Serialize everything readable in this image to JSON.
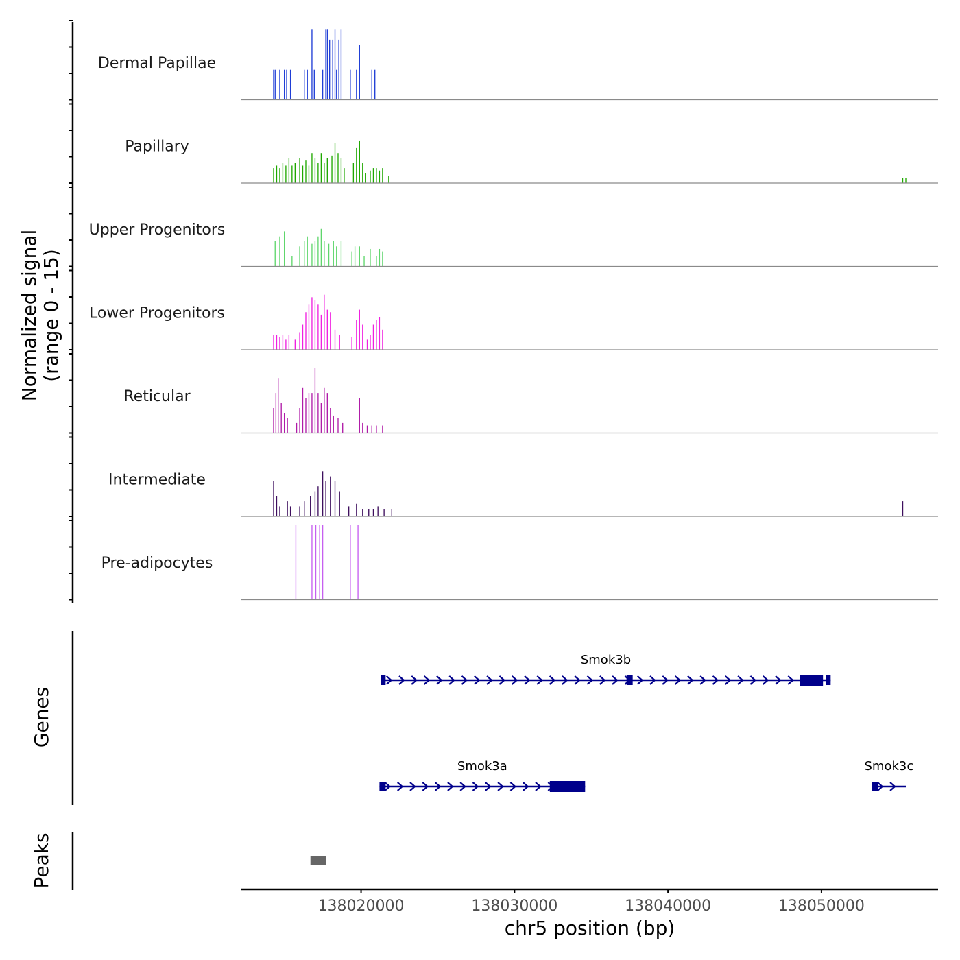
{
  "chart_data": {
    "type": "genome-coverage",
    "chromosome": "chr5",
    "xlabel": "chr5 position (bp)",
    "xlim": [
      138012200,
      138057600
    ],
    "x_ticks": [
      138020000,
      138030000,
      138040000,
      138050000
    ],
    "x_tick_labels": [
      "138020000",
      "138030000",
      "138040000",
      "138050000"
    ],
    "signal_ylabel": "Normalized signal",
    "signal_range_label": "(range 0 - 15)",
    "ylim": [
      0,
      15
    ],
    "tracks": [
      {
        "name": "Dermal Papillae",
        "color": "#1F3ED6",
        "bins": [
          [
            138014300,
            6
          ],
          [
            138014400,
            6
          ],
          [
            138014700,
            6
          ],
          [
            138015000,
            6
          ],
          [
            138015150,
            6
          ],
          [
            138015400,
            6
          ],
          [
            138016300,
            6
          ],
          [
            138016500,
            6
          ],
          [
            138016800,
            14
          ],
          [
            138016950,
            6
          ],
          [
            138017500,
            6
          ],
          [
            138017700,
            14
          ],
          [
            138017800,
            14
          ],
          [
            138017950,
            12
          ],
          [
            138018150,
            12
          ],
          [
            138018300,
            14
          ],
          [
            138018400,
            6
          ],
          [
            138018550,
            12
          ],
          [
            138018700,
            14
          ],
          [
            138019300,
            6
          ],
          [
            138019700,
            6
          ],
          [
            138019900,
            11
          ],
          [
            138020700,
            6
          ],
          [
            138020900,
            6
          ]
        ]
      },
      {
        "name": "Papillary",
        "color": "#1FA800",
        "bins": [
          [
            138014300,
            3
          ],
          [
            138014500,
            3.5
          ],
          [
            138014700,
            3
          ],
          [
            138014900,
            4
          ],
          [
            138015100,
            3.5
          ],
          [
            138015300,
            5
          ],
          [
            138015500,
            3.5
          ],
          [
            138015700,
            4
          ],
          [
            138016000,
            5
          ],
          [
            138016200,
            3.5
          ],
          [
            138016400,
            4.5
          ],
          [
            138016600,
            3.5
          ],
          [
            138016800,
            6
          ],
          [
            138017000,
            5
          ],
          [
            138017200,
            4
          ],
          [
            138017400,
            6
          ],
          [
            138017600,
            4
          ],
          [
            138017800,
            5
          ],
          [
            138018100,
            5.5
          ],
          [
            138018300,
            8
          ],
          [
            138018500,
            6
          ],
          [
            138018700,
            5
          ],
          [
            138018900,
            3
          ],
          [
            138019500,
            4
          ],
          [
            138019700,
            7
          ],
          [
            138019900,
            8.5
          ],
          [
            138020100,
            4
          ],
          [
            138020300,
            2
          ],
          [
            138020600,
            2.5
          ],
          [
            138020800,
            3
          ],
          [
            138021000,
            3
          ],
          [
            138021200,
            2.5
          ],
          [
            138021400,
            3
          ],
          [
            138021800,
            1.5
          ],
          [
            138055300,
            1
          ],
          [
            138055500,
            1
          ]
        ]
      },
      {
        "name": "Upper Progenitors",
        "color": "#5FD66C",
        "bins": [
          [
            138014400,
            5
          ],
          [
            138014700,
            6
          ],
          [
            138015000,
            7
          ],
          [
            138015500,
            2
          ],
          [
            138016000,
            4
          ],
          [
            138016300,
            5
          ],
          [
            138016500,
            6
          ],
          [
            138016800,
            4.5
          ],
          [
            138017000,
            5
          ],
          [
            138017200,
            6
          ],
          [
            138017400,
            7.5
          ],
          [
            138017600,
            5
          ],
          [
            138017900,
            4.5
          ],
          [
            138018200,
            5
          ],
          [
            138018400,
            4
          ],
          [
            138018700,
            5
          ],
          [
            138019400,
            3
          ],
          [
            138019600,
            4
          ],
          [
            138019900,
            4
          ],
          [
            138020200,
            2
          ],
          [
            138020600,
            3.5
          ],
          [
            138021000,
            2
          ],
          [
            138021200,
            3.5
          ],
          [
            138021400,
            3
          ]
        ]
      },
      {
        "name": "Lower Progenitors",
        "color": "#F020E0",
        "bins": [
          [
            138014300,
            3
          ],
          [
            138014500,
            3
          ],
          [
            138014700,
            2.5
          ],
          [
            138014900,
            3
          ],
          [
            138015100,
            2
          ],
          [
            138015300,
            3
          ],
          [
            138015700,
            2
          ],
          [
            138016000,
            3.5
          ],
          [
            138016200,
            5
          ],
          [
            138016400,
            7.5
          ],
          [
            138016600,
            9
          ],
          [
            138016800,
            10.5
          ],
          [
            138017000,
            10
          ],
          [
            138017200,
            9
          ],
          [
            138017400,
            7
          ],
          [
            138017600,
            11
          ],
          [
            138017800,
            8
          ],
          [
            138018000,
            7.5
          ],
          [
            138018300,
            4
          ],
          [
            138018600,
            3
          ],
          [
            138019400,
            2.5
          ],
          [
            138019700,
            6
          ],
          [
            138019900,
            8
          ],
          [
            138020100,
            5
          ],
          [
            138020400,
            2
          ],
          [
            138020600,
            3
          ],
          [
            138020800,
            5
          ],
          [
            138021000,
            6
          ],
          [
            138021200,
            6.5
          ],
          [
            138021400,
            4
          ]
        ]
      },
      {
        "name": "Reticular",
        "color": "#B01BA8",
        "bins": [
          [
            138014300,
            5
          ],
          [
            138014450,
            8
          ],
          [
            138014600,
            11
          ],
          [
            138014800,
            6
          ],
          [
            138015000,
            4
          ],
          [
            138015200,
            3
          ],
          [
            138015800,
            2
          ],
          [
            138016000,
            5
          ],
          [
            138016200,
            9
          ],
          [
            138016400,
            7
          ],
          [
            138016600,
            8
          ],
          [
            138016800,
            8
          ],
          [
            138017000,
            13
          ],
          [
            138017200,
            8
          ],
          [
            138017400,
            6
          ],
          [
            138017600,
            9
          ],
          [
            138017800,
            8
          ],
          [
            138018000,
            5
          ],
          [
            138018200,
            3.5
          ],
          [
            138018500,
            3
          ],
          [
            138018800,
            2
          ],
          [
            138019900,
            7
          ],
          [
            138020100,
            2
          ],
          [
            138020400,
            1.5
          ],
          [
            138020700,
            1.5
          ],
          [
            138021000,
            1.5
          ],
          [
            138021400,
            1.5
          ]
        ]
      },
      {
        "name": "Intermediate",
        "color": "#3E0F5E",
        "bins": [
          [
            138014300,
            7
          ],
          [
            138014500,
            4
          ],
          [
            138014700,
            2
          ],
          [
            138015200,
            3
          ],
          [
            138015400,
            2
          ],
          [
            138016000,
            2
          ],
          [
            138016300,
            3
          ],
          [
            138016700,
            4
          ],
          [
            138017000,
            5
          ],
          [
            138017200,
            6
          ],
          [
            138017500,
            9
          ],
          [
            138017700,
            7
          ],
          [
            138018000,
            8
          ],
          [
            138018300,
            7
          ],
          [
            138018600,
            5
          ],
          [
            138019200,
            2
          ],
          [
            138019700,
            2.5
          ],
          [
            138020100,
            1.5
          ],
          [
            138020500,
            1.5
          ],
          [
            138020800,
            1.5
          ],
          [
            138021100,
            2
          ],
          [
            138021500,
            1.5
          ],
          [
            138022000,
            1.5
          ],
          [
            138055300,
            3
          ]
        ]
      },
      {
        "name": "Pre-adipocytes",
        "color": "#C65FF0",
        "bins": [
          [
            138015750,
            15
          ],
          [
            138016800,
            15
          ],
          [
            138017050,
            15
          ],
          [
            138017300,
            15
          ],
          [
            138017500,
            15
          ],
          [
            138019300,
            15
          ],
          [
            138019800,
            15
          ]
        ]
      }
    ],
    "genes_label": "Genes",
    "genes": [
      {
        "name": "Smok3b",
        "start": 138021300,
        "end": 138050600,
        "strand": "+",
        "row": 1,
        "exons": [
          [
            138021300,
            138021600,
            "small"
          ],
          [
            138037300,
            138037700,
            "small"
          ],
          [
            138048600,
            138050100,
            "large"
          ],
          [
            138050300,
            138050600,
            "small"
          ]
        ]
      },
      {
        "name": "Smok3a",
        "start": 138021200,
        "end": 138034600,
        "strand": "+",
        "row": 2,
        "exons": [
          [
            138021200,
            138021600,
            "small"
          ],
          [
            138032300,
            138034600,
            "large"
          ]
        ]
      },
      {
        "name": "Smok3c",
        "start": 138053300,
        "end": 138055500,
        "strand": "+",
        "row": 2,
        "exons": [
          [
            138053300,
            138053700,
            "small"
          ]
        ]
      }
    ],
    "peaks_label": "Peaks",
    "peaks": [
      [
        138016700,
        138017700
      ]
    ],
    "colors": {
      "axis": "#000000",
      "baseline": "#8a8a8a",
      "gene": "#00008B",
      "peak": "#666666"
    }
  }
}
